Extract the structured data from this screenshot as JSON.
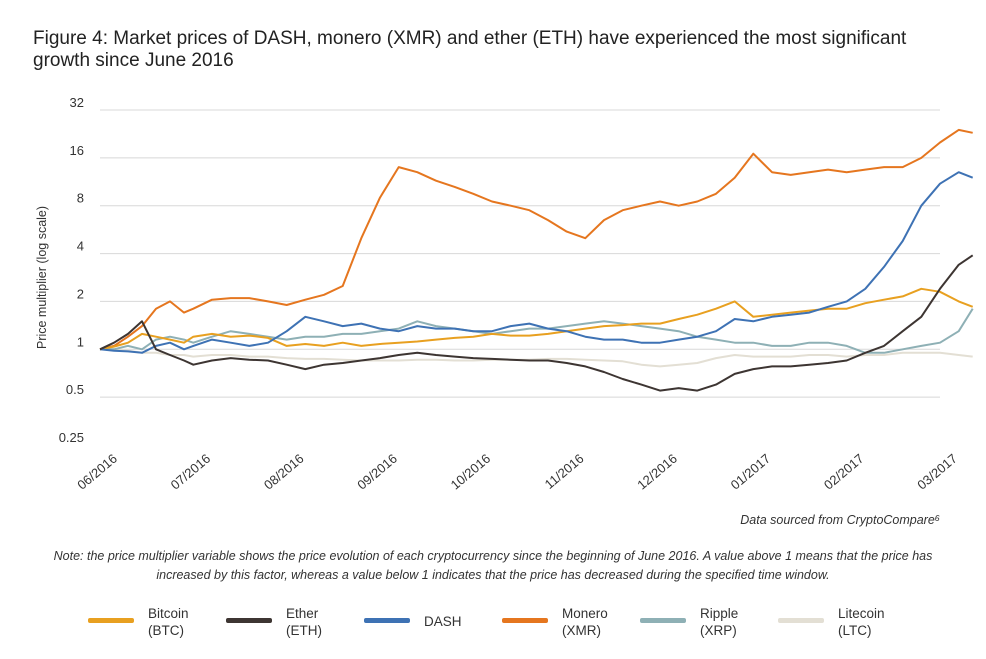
{
  "title": "Figure 4: Market prices of DASH, monero (XMR) and ether (ETH) have experienced the most significant growth since June 2016",
  "source": "Data sourced from CryptoCompare⁶",
  "note": "Note: the price multiplier variable shows the price evolution of each cryptocurrency since the beginning of June 2016. A value above 1 means that the price has increased by this factor, whereas a value below 1 indicates that the price has decreased during the specified time window.",
  "chart_data": {
    "type": "line",
    "ylabel": "Price multiplier (log scale)",
    "xlabel": "",
    "yscale": "log2",
    "ylim": [
      0.25,
      32
    ],
    "yticks": [
      32,
      16,
      8,
      4,
      2,
      1,
      0.5,
      0.25
    ],
    "ytick_labels": [
      "32",
      "16",
      "8",
      "4",
      "2",
      "1",
      "0.5",
      "0.25"
    ],
    "categories": [
      "06/2016",
      "07/2016",
      "08/2016",
      "09/2016",
      "10/2016",
      "11/2016",
      "12/2016",
      "01/2017",
      "02/2017",
      "03/2017"
    ],
    "x": [
      0,
      0.15,
      0.3,
      0.45,
      0.6,
      0.75,
      0.9,
      1.0,
      1.2,
      1.4,
      1.6,
      1.8,
      2.0,
      2.2,
      2.4,
      2.6,
      2.8,
      3.0,
      3.2,
      3.4,
      3.6,
      3.8,
      4.0,
      4.2,
      4.4,
      4.6,
      4.8,
      5.0,
      5.2,
      5.4,
      5.6,
      5.8,
      6.0,
      6.2,
      6.4,
      6.6,
      6.8,
      7.0,
      7.2,
      7.4,
      7.6,
      7.8,
      8.0,
      8.2,
      8.4,
      8.6,
      8.8,
      9.0,
      9.2,
      9.35
    ],
    "series": [
      {
        "name": "Bitcoin (BTC)",
        "color": "#E8A020",
        "values": [
          1.0,
          1.04,
          1.1,
          1.25,
          1.2,
          1.15,
          1.1,
          1.2,
          1.25,
          1.2,
          1.22,
          1.18,
          1.05,
          1.08,
          1.05,
          1.1,
          1.05,
          1.08,
          1.1,
          1.12,
          1.15,
          1.18,
          1.2,
          1.25,
          1.22,
          1.22,
          1.25,
          1.3,
          1.35,
          1.4,
          1.42,
          1.45,
          1.45,
          1.55,
          1.65,
          1.8,
          2.0,
          1.6,
          1.65,
          1.7,
          1.75,
          1.8,
          1.8,
          1.95,
          2.05,
          2.15,
          2.4,
          2.3,
          2.0,
          1.85
        ]
      },
      {
        "name": "Ether (ETH)",
        "color": "#3D3532",
        "values": [
          1.0,
          1.1,
          1.25,
          1.5,
          1.0,
          0.92,
          0.85,
          0.8,
          0.85,
          0.88,
          0.86,
          0.85,
          0.8,
          0.75,
          0.8,
          0.82,
          0.85,
          0.88,
          0.92,
          0.95,
          0.92,
          0.9,
          0.88,
          0.87,
          0.86,
          0.85,
          0.85,
          0.82,
          0.78,
          0.72,
          0.65,
          0.6,
          0.55,
          0.57,
          0.55,
          0.6,
          0.7,
          0.75,
          0.78,
          0.78,
          0.8,
          0.82,
          0.85,
          0.95,
          1.05,
          1.3,
          1.6,
          2.4,
          3.4,
          3.9
        ]
      },
      {
        "name": "DASH",
        "color": "#3E72B4",
        "values": [
          1.0,
          0.98,
          0.97,
          0.95,
          1.05,
          1.1,
          1.0,
          1.05,
          1.15,
          1.1,
          1.05,
          1.1,
          1.3,
          1.6,
          1.5,
          1.4,
          1.45,
          1.35,
          1.3,
          1.4,
          1.35,
          1.35,
          1.3,
          1.3,
          1.4,
          1.45,
          1.35,
          1.3,
          1.2,
          1.15,
          1.15,
          1.1,
          1.1,
          1.15,
          1.2,
          1.3,
          1.55,
          1.5,
          1.6,
          1.65,
          1.7,
          1.85,
          2.0,
          2.4,
          3.3,
          4.8,
          8.0,
          11.0,
          13.0,
          12.0
        ]
      },
      {
        "name": "Monero (XMR)",
        "color": "#E5761F",
        "values": [
          1.0,
          1.05,
          1.2,
          1.4,
          1.8,
          2.0,
          1.7,
          1.8,
          2.05,
          2.1,
          2.1,
          2.0,
          1.9,
          2.05,
          2.2,
          2.5,
          5.0,
          9.0,
          14.0,
          13.0,
          11.5,
          10.5,
          9.5,
          8.5,
          8.0,
          7.5,
          6.5,
          5.5,
          5.0,
          6.5,
          7.5,
          8.0,
          8.5,
          8.0,
          8.5,
          9.5,
          12.0,
          17.0,
          13.0,
          12.5,
          13.0,
          13.5,
          13.0,
          13.5,
          14.0,
          14.0,
          16.0,
          20.0,
          24.0,
          23.0
        ]
      },
      {
        "name": "Ripple (XRP)",
        "color": "#8EB0B5",
        "values": [
          1.0,
          1.0,
          1.05,
          1.0,
          1.15,
          1.2,
          1.15,
          1.1,
          1.2,
          1.3,
          1.25,
          1.2,
          1.15,
          1.2,
          1.2,
          1.25,
          1.25,
          1.3,
          1.35,
          1.5,
          1.4,
          1.35,
          1.3,
          1.25,
          1.3,
          1.35,
          1.35,
          1.4,
          1.45,
          1.5,
          1.45,
          1.4,
          1.35,
          1.3,
          1.2,
          1.15,
          1.1,
          1.1,
          1.05,
          1.05,
          1.1,
          1.1,
          1.05,
          0.95,
          0.95,
          1.0,
          1.05,
          1.1,
          1.3,
          1.8
        ]
      },
      {
        "name": "Litecoin (LTC)",
        "color": "#E3DFD4",
        "values": [
          1.0,
          1.0,
          0.98,
          0.95,
          0.95,
          0.92,
          0.92,
          0.9,
          0.92,
          0.92,
          0.9,
          0.9,
          0.88,
          0.87,
          0.87,
          0.86,
          0.85,
          0.85,
          0.85,
          0.86,
          0.86,
          0.85,
          0.85,
          0.86,
          0.86,
          0.86,
          0.87,
          0.87,
          0.86,
          0.85,
          0.84,
          0.8,
          0.78,
          0.8,
          0.82,
          0.88,
          0.92,
          0.9,
          0.9,
          0.9,
          0.92,
          0.92,
          0.9,
          0.92,
          0.92,
          0.95,
          0.95,
          0.95,
          0.92,
          0.9
        ]
      }
    ],
    "grid": "horizontal",
    "legend": "bottom"
  },
  "legend": [
    {
      "line1": "Bitcoin",
      "line2": "(BTC)",
      "color": "#E8A020"
    },
    {
      "line1": "Ether",
      "line2": "(ETH)",
      "color": "#3D3532"
    },
    {
      "line1": "DASH",
      "line2": "",
      "color": "#3E72B4"
    },
    {
      "line1": "Monero",
      "line2": "(XMR)",
      "color": "#E5761F"
    },
    {
      "line1": "Ripple",
      "line2": "(XRP)",
      "color": "#8EB0B5"
    },
    {
      "line1": "Litecoin",
      "line2": "(LTC)",
      "color": "#E3DFD4"
    }
  ]
}
